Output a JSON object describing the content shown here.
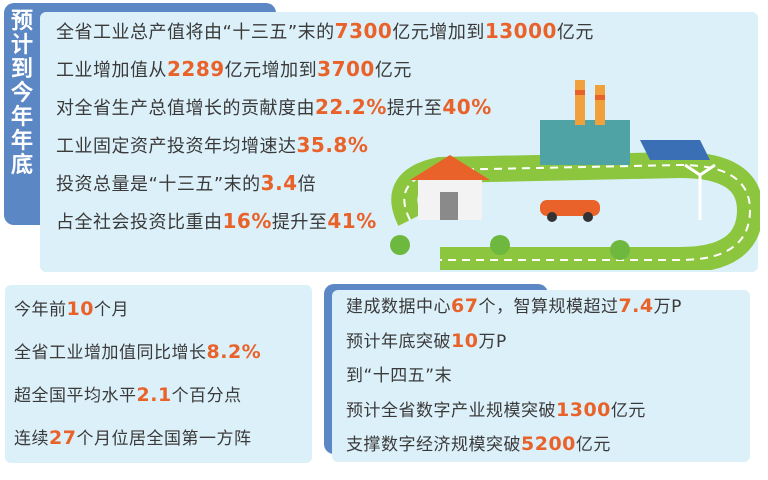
{
  "top": {
    "tab_label": "预计到今年年底",
    "lines": [
      {
        "a": "全省工业总产值将由“十三五”末的",
        "n1": "7300",
        "b": "亿元增加到",
        "n2": "13000",
        "c": "亿元"
      },
      {
        "a": "工业增加值从",
        "n1": "2289",
        "b": "亿元增加到",
        "n2": "3700",
        "c": "亿元"
      },
      {
        "a": "对全省生产总值增长的贡献度由",
        "n1": "22.2%",
        "b": "提升至",
        "n2": "40%",
        "c": ""
      },
      {
        "a": "工业固定资产投资年均增速达",
        "n1": "35.8%",
        "b": "",
        "n2": "",
        "c": ""
      },
      {
        "a": "投资总量是“十三五”末的",
        "n1": "3.4",
        "b": "倍",
        "n2": "",
        "c": ""
      },
      {
        "a": "占全社会投资比重由",
        "n1": "16%",
        "b": "提升至",
        "n2": "41%",
        "c": ""
      }
    ]
  },
  "bottom_left": {
    "lines": [
      {
        "a": "今年前",
        "n1": "10",
        "b": "个月"
      },
      {
        "a": "全省工业增加值同比增长",
        "n1": "8.2%",
        "b": ""
      },
      {
        "a": "超全国平均水平",
        "n1": "2.1",
        "b": "个百分点"
      },
      {
        "a": "连续",
        "n1": "27",
        "b": "个月位居全国第一方阵"
      }
    ]
  },
  "bottom_right": {
    "lines": [
      {
        "a": "建成数据中心",
        "n1": "67",
        "b": "个，智算规模超过",
        "n2": "7.4",
        "c": "万P"
      },
      {
        "a": "预计年底突破",
        "n1": "10",
        "b": "万P",
        "n2": "",
        "c": ""
      },
      {
        "a": "到“十四五”末",
        "n1": "",
        "b": "",
        "n2": "",
        "c": ""
      },
      {
        "a": "预计全省数字产业规模突破",
        "n1": "1300",
        "b": "亿元",
        "n2": "",
        "c": ""
      },
      {
        "a": "支撑数字经济规模突破",
        "n1": "5200",
        "b": "亿元",
        "n2": "",
        "c": ""
      }
    ]
  },
  "colors": {
    "accent": "#e8622a",
    "tab": "#5b87c4",
    "card": "#dcf0f9"
  }
}
